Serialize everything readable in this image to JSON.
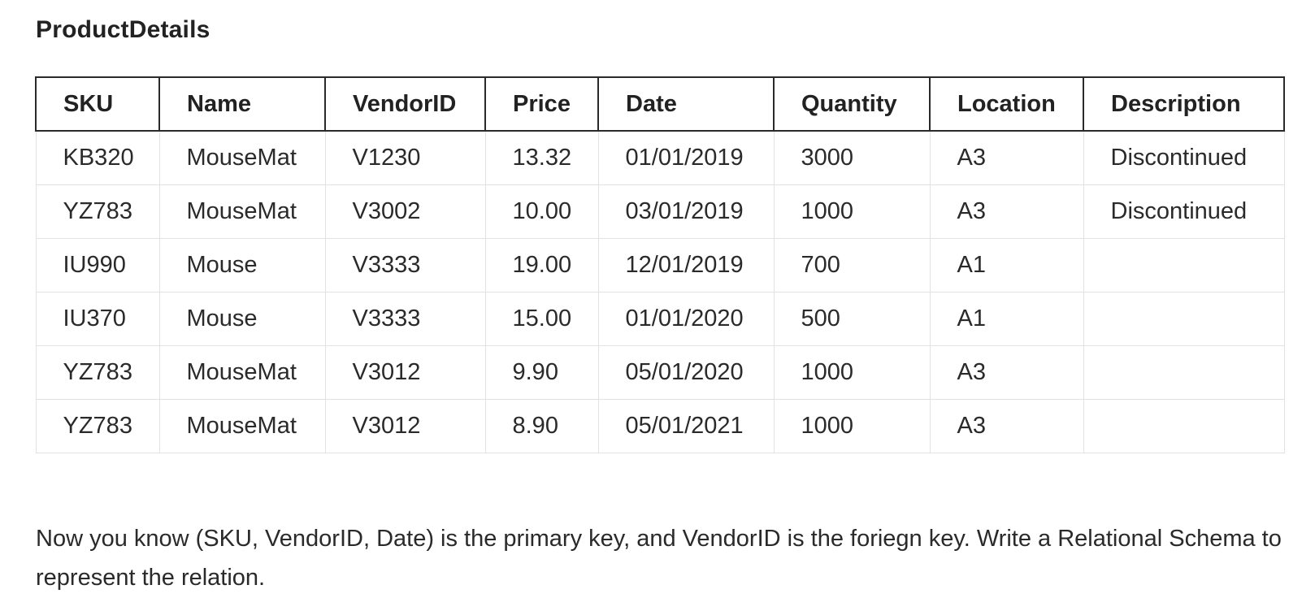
{
  "title": "ProductDetails",
  "table": {
    "headers": [
      "SKU",
      "Name",
      "VendorID",
      "Price",
      "Date",
      "Quantity",
      "Location",
      "Description"
    ],
    "rows": [
      [
        "KB320",
        "MouseMat",
        "V1230",
        "13.32",
        "01/01/2019",
        "3000",
        "A3",
        "Discontinued"
      ],
      [
        "YZ783",
        "MouseMat",
        "V3002",
        "10.00",
        "03/01/2019",
        "1000",
        "A3",
        "Discontinued"
      ],
      [
        "IU990",
        "Mouse",
        "V3333",
        "19.00",
        "12/01/2019",
        "700",
        "A1",
        ""
      ],
      [
        "IU370",
        "Mouse",
        "V3333",
        "15.00",
        "01/01/2020",
        "500",
        "A1",
        ""
      ],
      [
        "YZ783",
        "MouseMat",
        "V3012",
        "9.90",
        "05/01/2020",
        "1000",
        "A3",
        ""
      ],
      [
        "YZ783",
        "MouseMat",
        "V3012",
        "8.90",
        "05/01/2021",
        "1000",
        "A3",
        ""
      ]
    ]
  },
  "note": "Now you know (SKU, VendorID, Date) is the primary key, and VendorID is the foriegn key.  Write a Relational Schema to represent the relation."
}
